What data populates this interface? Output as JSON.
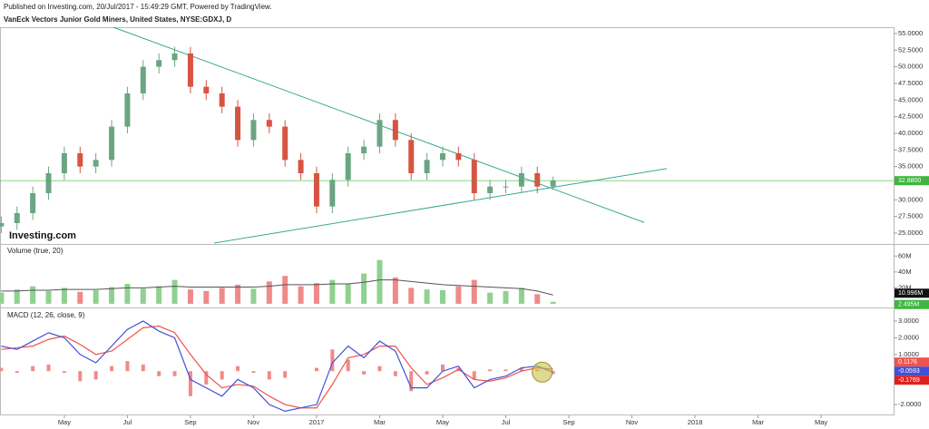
{
  "header": {
    "published": "Published on Investing.com, 20/Jul/2017 - 15:49:29 GMT, Powered by TradingView.",
    "symbol": "VanEck Vectors Junior Gold Miners, United States, NYSE:GDXJ, D",
    "logo": "Investing.com"
  },
  "chart_data": [
    {
      "type": "candlestick",
      "x": [
        2,
        2.5,
        3,
        3.5,
        4,
        4.5,
        5,
        5.5,
        6,
        6.5,
        7,
        7.5,
        8,
        8.5,
        9,
        9.5,
        10,
        10.5,
        11,
        11.5,
        12,
        12.5,
        13,
        13.5,
        14,
        14.5,
        15,
        15.5,
        16,
        16.5,
        17,
        17.5,
        18,
        18.5,
        19,
        19.5
      ],
      "open": [
        26,
        26.5,
        28,
        31,
        34,
        37,
        35,
        36,
        41,
        46,
        50,
        51,
        52,
        47,
        46,
        44,
        39,
        42,
        41,
        36,
        34,
        29,
        33,
        37,
        38,
        42,
        39,
        34,
        36,
        37,
        36,
        31,
        32,
        32,
        34,
        32
      ],
      "high": [
        27.5,
        29,
        32,
        35,
        38,
        38,
        37,
        42,
        47,
        51,
        52,
        53,
        53,
        48,
        47,
        45,
        43,
        43,
        42,
        37,
        35,
        34,
        38,
        39,
        43,
        43,
        40,
        37,
        38,
        38,
        37,
        33,
        33,
        35,
        35,
        33.5
      ],
      "low": [
        25,
        25.5,
        27,
        30,
        33,
        34,
        34,
        35,
        40,
        45,
        49,
        50,
        46,
        45,
        43,
        38,
        38,
        40,
        35,
        33,
        28,
        28,
        32,
        36,
        37,
        38,
        33,
        33,
        35,
        35,
        30,
        30,
        31,
        31,
        31,
        31.5
      ],
      "close": [
        26.5,
        28,
        31,
        34,
        37,
        35,
        36,
        41,
        46,
        50,
        51,
        52,
        47,
        46,
        44,
        39,
        42,
        41,
        36,
        34,
        29,
        33,
        37,
        38,
        42,
        39,
        34,
        36,
        37,
        36,
        31,
        32,
        32,
        34,
        32,
        32.88
      ],
      "close_labels": [
        null,
        null,
        null,
        null,
        null,
        null,
        null,
        null,
        null,
        null,
        null,
        null,
        null,
        null,
        null,
        null,
        null,
        null,
        null,
        null,
        null,
        null,
        null,
        null,
        null,
        null,
        null,
        null,
        null,
        null,
        null,
        null,
        null,
        null,
        null,
        "32.8800"
      ],
      "up_color": "#6ba583",
      "down_color": "#d75442",
      "last_color": "#3cb63c",
      "xlim": [
        1.96,
        30.3
      ],
      "xticks": [
        {
          "value": 4,
          "label": "May"
        },
        {
          "value": 6,
          "label": "Jul"
        },
        {
          "value": 8,
          "label": "Sep"
        },
        {
          "value": 10,
          "label": "Nov"
        },
        {
          "value": 12,
          "label": "2017"
        },
        {
          "value": 14,
          "label": "Mar"
        },
        {
          "value": 16,
          "label": "May"
        },
        {
          "value": 18,
          "label": "Jul"
        },
        {
          "value": 20,
          "label": "Sep"
        },
        {
          "value": 22,
          "label": "Nov"
        },
        {
          "value": 24,
          "label": "2018"
        },
        {
          "value": 26,
          "label": "Mar"
        },
        {
          "value": 28,
          "label": "May"
        }
      ],
      "ylim": [
        23.5,
        55.95
      ],
      "yticks": [
        {
          "value": 25,
          "label": "25.0000"
        },
        {
          "value": 27.5,
          "label": "27.5000"
        },
        {
          "value": 30,
          "label": "30.0000"
        },
        {
          "value": 35,
          "label": "35.0000"
        },
        {
          "value": 37.5,
          "label": "37.5000"
        },
        {
          "value": 40,
          "label": "40.0000"
        },
        {
          "value": 42.5,
          "label": "42.5000"
        },
        {
          "value": 45,
          "label": "45.0000"
        },
        {
          "value": 47.5,
          "label": "47.5000"
        },
        {
          "value": 50,
          "label": "50.0000"
        },
        {
          "value": 52.5,
          "label": "52.5000"
        },
        {
          "value": 55,
          "label": "55.0000"
        }
      ],
      "trendlines": [
        {
          "x": [
            5.55,
            22.39
          ],
          "y": [
            55.95,
            26.6
          ],
          "color": "#3aa890"
        },
        {
          "x": [
            8.75,
            23.11
          ],
          "y": [
            23.5,
            34.7
          ],
          "color": "#3aa890"
        }
      ]
    },
    {
      "type": "bar",
      "title": "Volume (true, 20)",
      "values": [
        14,
        18,
        22,
        16,
        20,
        15,
        17,
        21,
        25,
        19,
        22,
        30,
        18,
        16,
        20,
        24,
        19,
        28,
        35,
        22,
        26,
        30,
        25,
        38,
        55,
        33,
        20,
        18,
        17,
        22,
        30,
        14,
        16,
        20,
        12,
        2.495
      ],
      "value_labels": [
        null,
        null,
        null,
        null,
        null,
        null,
        null,
        null,
        null,
        null,
        null,
        null,
        null,
        null,
        null,
        null,
        null,
        null,
        null,
        null,
        null,
        null,
        null,
        null,
        null,
        null,
        null,
        null,
        null,
        null,
        null,
        null,
        null,
        null,
        null,
        "2.495M"
      ],
      "ma": [
        16,
        16,
        17,
        17,
        18,
        18,
        18,
        19,
        20,
        20,
        21,
        22,
        21,
        21,
        21,
        21,
        21,
        22,
        24,
        24,
        24,
        25,
        25,
        27,
        30,
        30,
        28,
        26,
        24,
        23,
        22,
        21,
        20,
        19,
        16,
        10.996
      ],
      "ma_labels": [
        null,
        null,
        null,
        null,
        null,
        null,
        null,
        null,
        null,
        null,
        null,
        null,
        null,
        null,
        null,
        null,
        null,
        null,
        null,
        null,
        null,
        null,
        null,
        null,
        null,
        null,
        null,
        null,
        null,
        null,
        null,
        null,
        null,
        null,
        null,
        "10.996M"
      ],
      "up_color": "#8fd18f",
      "down_color": "#ef8a8a",
      "ma_color": "#555555",
      "last_color": "#3cb63c",
      "ylim": [
        -3.5,
        74
      ],
      "yticks": [
        {
          "value": 20,
          "label": "20M"
        },
        {
          "value": 40,
          "label": "40M"
        },
        {
          "value": 60,
          "label": "60M"
        }
      ]
    },
    {
      "type": "macd",
      "title": "MACD (12, 26, close, 9)",
      "macd": {
        "color": "#3f51d8",
        "values": [
          1.5,
          1.3,
          1.8,
          2.3,
          2.0,
          1.0,
          0.5,
          1.5,
          2.5,
          3.0,
          2.4,
          2.0,
          -0.5,
          -1.0,
          -1.5,
          -0.5,
          -1.0,
          -2.0,
          -2.4,
          -2.2,
          -2.0,
          0.5,
          1.5,
          0.8,
          1.8,
          1.2,
          -1.0,
          -1.0,
          0.0,
          0.3,
          -1.0,
          -0.5,
          -0.3,
          0.2,
          0.3,
          -0.0593
        ]
      },
      "signal": {
        "color": "#f0534a",
        "values": [
          1.3,
          1.4,
          1.5,
          1.9,
          2.1,
          1.6,
          1.0,
          1.2,
          1.9,
          2.6,
          2.7,
          2.3,
          1.0,
          -0.2,
          -1.0,
          -0.8,
          -0.9,
          -1.5,
          -2.0,
          -2.2,
          -2.2,
          -0.8,
          0.8,
          1.0,
          1.5,
          1.5,
          0.2,
          -0.8,
          -0.4,
          0.1,
          -0.5,
          -0.6,
          -0.4,
          0.0,
          0.2,
          0.1176
        ]
      },
      "histogram": {
        "color": "#f08a8a",
        "values": [
          0.2,
          -0.1,
          0.3,
          0.4,
          -0.1,
          -0.6,
          -0.5,
          0.3,
          0.6,
          0.4,
          -0.3,
          -0.3,
          -1.5,
          -0.8,
          -0.5,
          0.3,
          -0.1,
          -0.5,
          -0.4,
          0.0,
          0.2,
          1.3,
          0.7,
          -0.2,
          0.3,
          -0.3,
          -1.2,
          -0.2,
          0.4,
          0.2,
          -0.5,
          0.1,
          0.1,
          0.2,
          0.1,
          -0.1769
        ]
      },
      "ylim": [
        -2.65,
        3.76
      ],
      "yticks": [
        {
          "value": -2,
          "label": "-2.0000"
        },
        {
          "value": 1,
          "label": "1.0000"
        },
        {
          "value": 2,
          "label": "2.0000"
        },
        {
          "value": 3,
          "label": "3.0000"
        }
      ]
    }
  ]
}
